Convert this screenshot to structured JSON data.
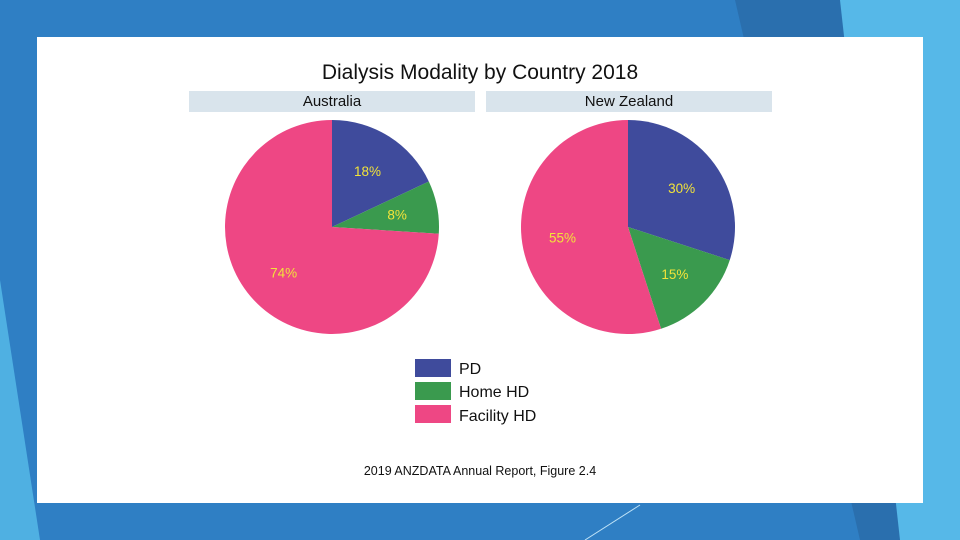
{
  "colors": {
    "slide_background": "#2f7fc4",
    "PD": "#3f4b9c",
    "Home HD": "#3a9a4e",
    "Facility HD": "#ee4784",
    "percent_label": "#f2e33a",
    "strip": "#d9e4ec"
  },
  "chart_data": [
    {
      "type": "pie",
      "title": "Dialysis Modality by Country 2018",
      "panel": "Australia",
      "labels": [
        "PD",
        "Home HD",
        "Facility HD"
      ],
      "values": [
        18,
        8,
        74
      ],
      "value_labels": [
        "18%",
        "8%",
        "74%"
      ]
    },
    {
      "type": "pie",
      "title": "Dialysis Modality by Country 2018",
      "panel": "New Zealand",
      "labels": [
        "PD",
        "Home HD",
        "Facility HD"
      ],
      "values": [
        30,
        15,
        55
      ],
      "value_labels": [
        "30%",
        "15%",
        "55%"
      ]
    }
  ],
  "title": "Dialysis Modality by Country 2018",
  "legend": [
    {
      "label": "PD",
      "color": "#3f4b9c"
    },
    {
      "label": "Home HD",
      "color": "#3a9a4e"
    },
    {
      "label": "Facility HD",
      "color": "#ee4784"
    }
  ],
  "source": "2019 ANZDATA Annual Report, Figure 2.4"
}
